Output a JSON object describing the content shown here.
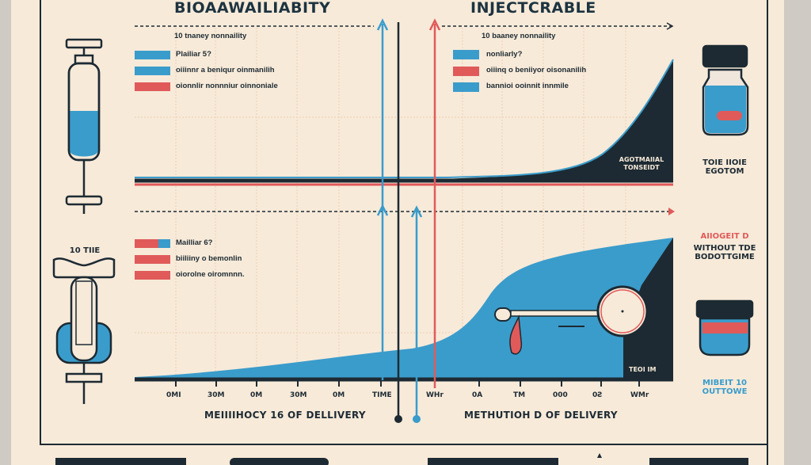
{
  "titles": {
    "left": "BIOAAWAILIABITY",
    "right": "INJECTCRABLE"
  },
  "top_chart": {
    "subtitle_left": "10 tnaney nonnaility",
    "subtitle_right": "10 baaney nonnaility",
    "legend_left": [
      "Plailiar 5?",
      "oiiinnr a beniqur oinmanilih",
      "oionnlir nonnniur oinnoniale"
    ],
    "legend_right": [
      "nonliarly?",
      "oiiinq o beniiyor oisonanilih",
      "bannioi ooinnit innmile"
    ],
    "area_label": "AGOTMAIIAL TONSEIDT",
    "side_label": [
      "TOIE IIOIE",
      "EGOTOM"
    ]
  },
  "bottom_chart": {
    "legend": [
      "Mailliar 6?",
      "biiliiny o bemonlin",
      "oiorolne oiromnnn."
    ],
    "tick_labels_left": [
      "0MI",
      "30M",
      "0M",
      "30M",
      "0M",
      "TIME"
    ],
    "tick_labels_right": [
      "WHr",
      "0A",
      "TM",
      "000",
      "0Ƨ",
      "WMr"
    ],
    "xlabel_left": "MEIIIIHOCY 16 OF DELLIVERY",
    "xlabel_right": "METHUTIOH D OF DELIVERY",
    "area_label": "TEOI IM",
    "side_label_red": "AIIOGEIT D",
    "side_label_dark": [
      "WITHOUT TDE",
      "BODOTTGIME"
    ],
    "side_label_blue": [
      "MIBEIT 10",
      "OUTTOWE"
    ],
    "syringe_label": "10 TIIE"
  },
  "colors": {
    "background": "#f7ead9",
    "blue": "#3a9ccb",
    "red": "#e05a5a",
    "dark": "#1d2a33",
    "grid": "#efcfb4"
  }
}
